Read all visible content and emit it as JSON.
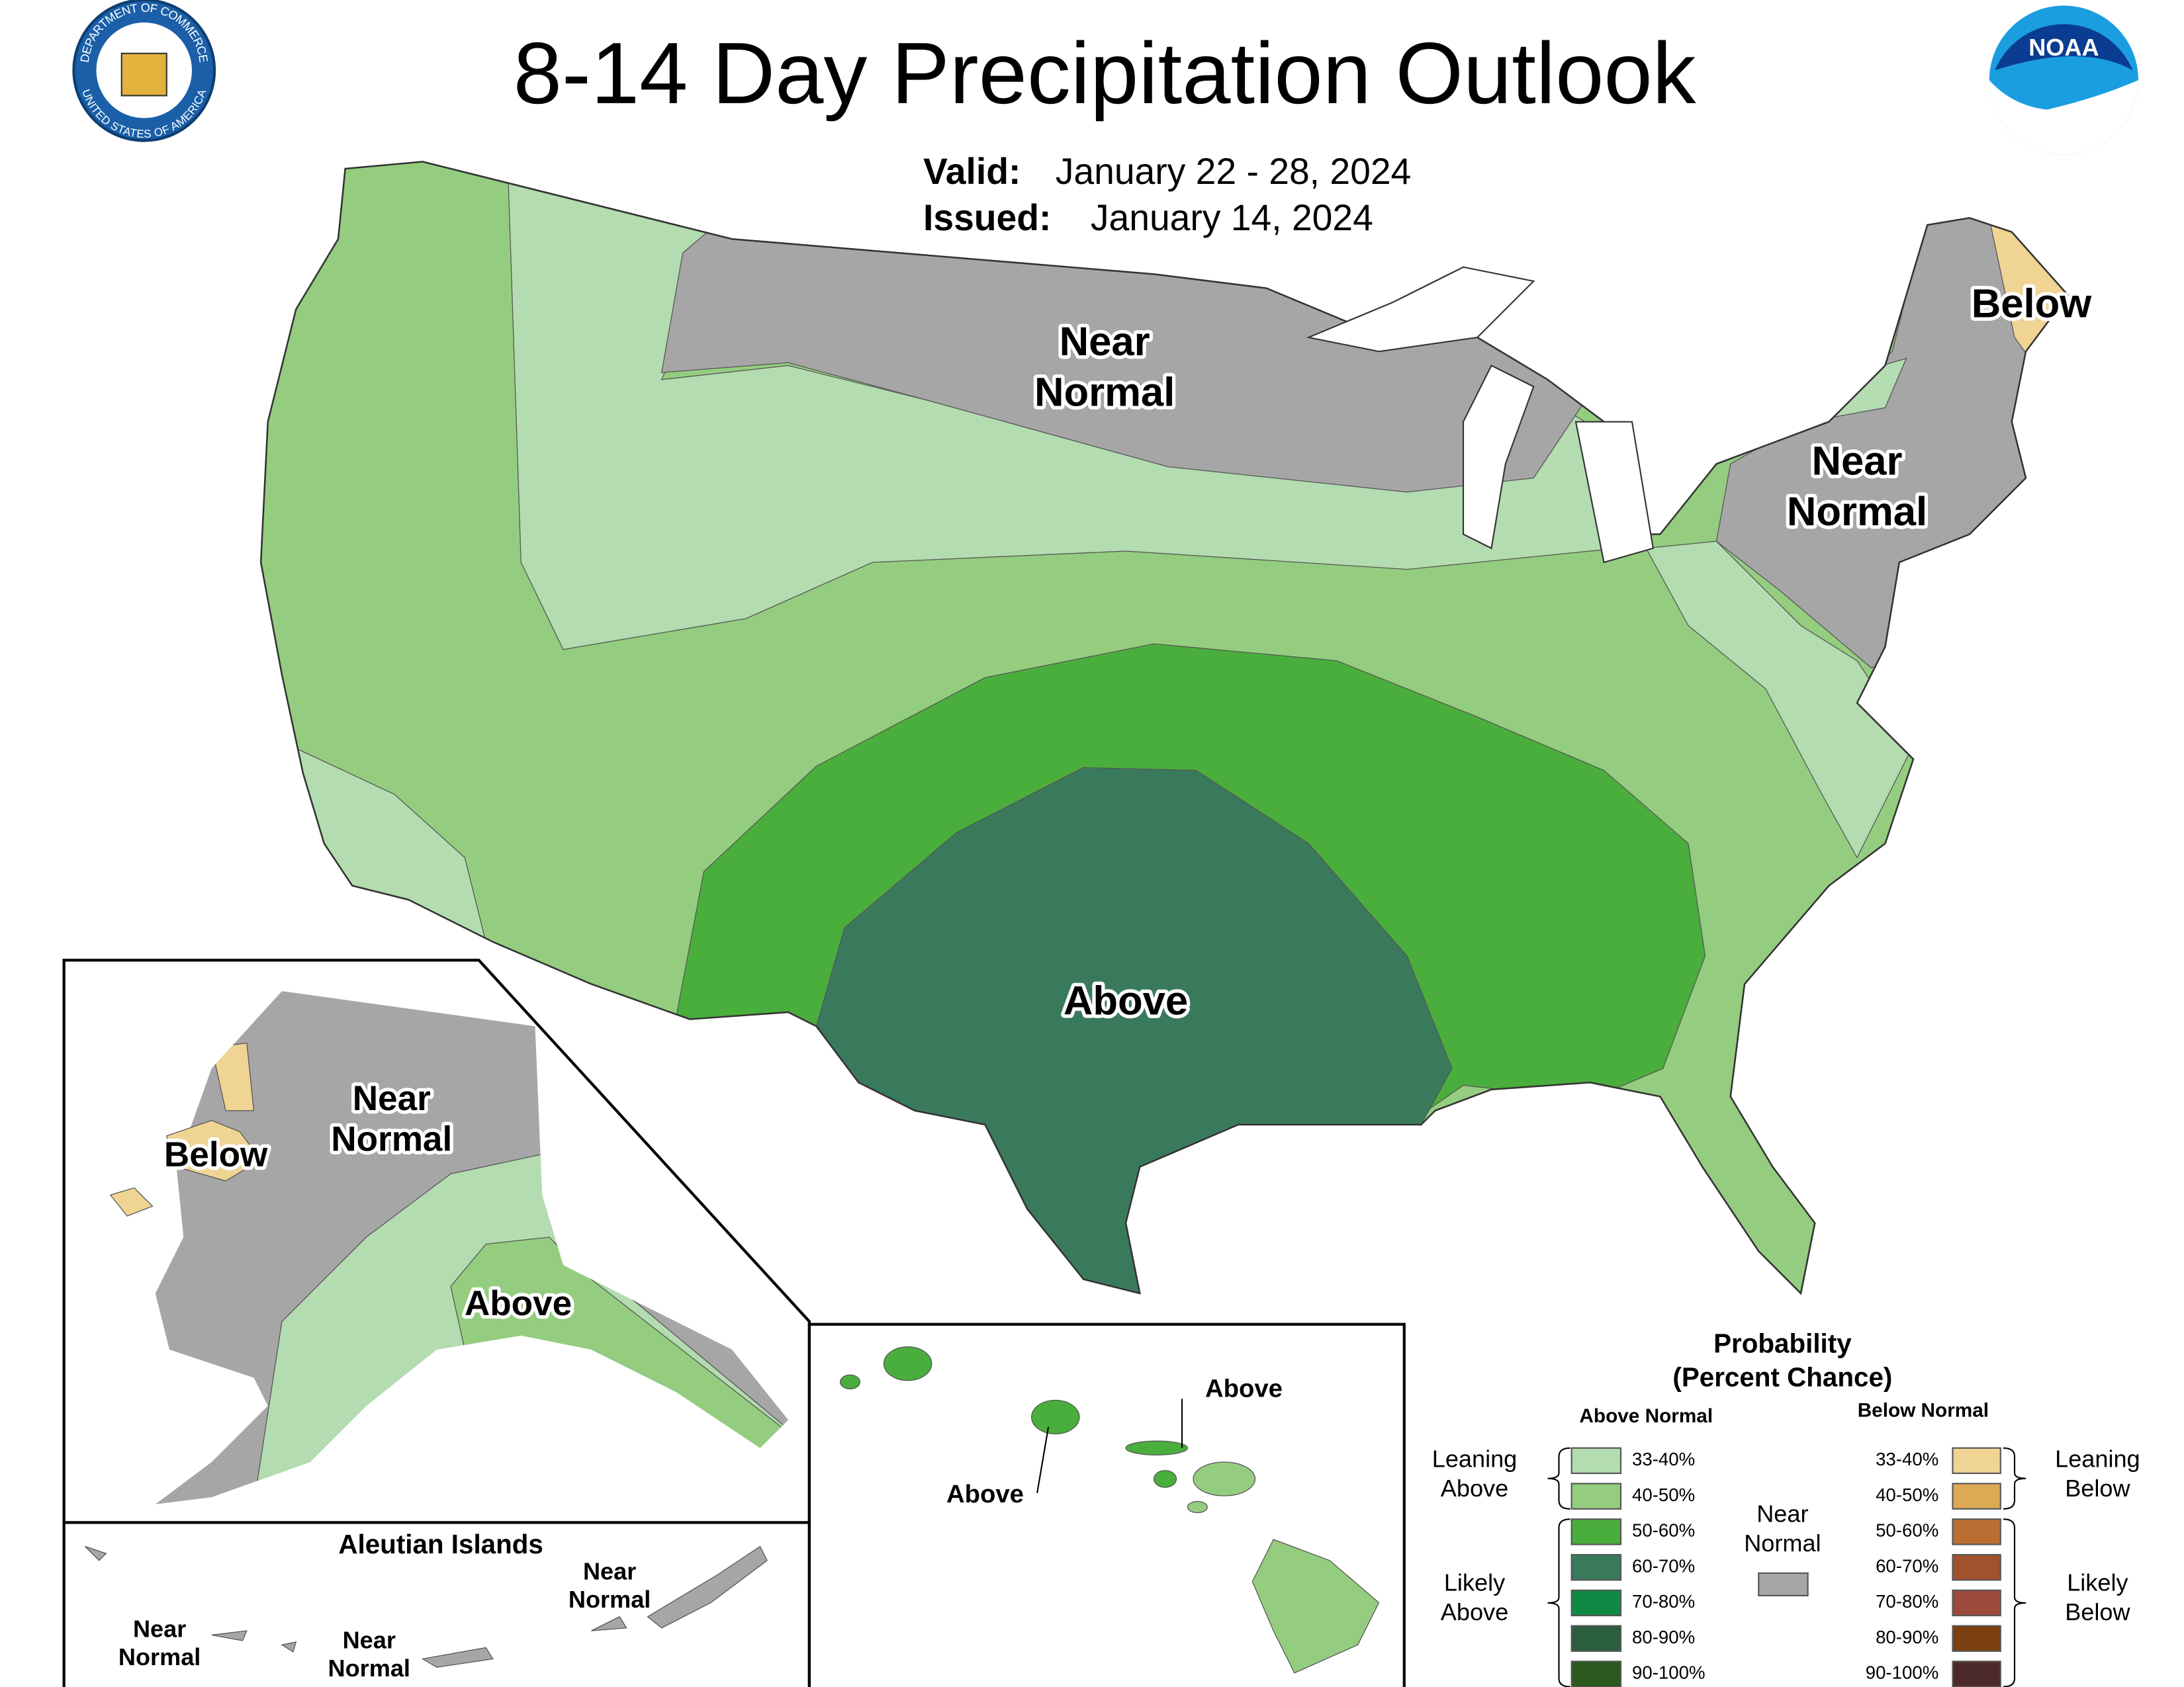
{
  "header": {
    "title": "8-14 Day Precipitation Outlook",
    "valid_label": "Valid:",
    "valid_dates": "January 22 - 28, 2024",
    "issued_label": "Issued:",
    "issued_date": "January 14, 2024"
  },
  "logos": {
    "commerce_top": "DEPARTMENT OF COMMERCE",
    "commerce_bottom": "UNITED STATES OF AMERICA",
    "noaa": "NOAA"
  },
  "conus_labels": [
    {
      "lines": [
        "Near",
        "Normal"
      ]
    },
    {
      "lines": [
        "Below"
      ]
    },
    {
      "lines": [
        "Near",
        "Normal"
      ]
    },
    {
      "lines": [
        "Above"
      ]
    }
  ],
  "alaska_labels": [
    {
      "lines": [
        "Near",
        "Normal"
      ]
    },
    {
      "lines": [
        "Below"
      ]
    },
    {
      "lines": [
        "Above"
      ]
    }
  ],
  "aleutian": {
    "title": "Aleutian Islands",
    "labels": [
      {
        "lines": [
          "Near",
          "Normal"
        ]
      },
      {
        "lines": [
          "Near",
          "Normal"
        ]
      },
      {
        "lines": [
          "Near",
          "Normal"
        ]
      }
    ]
  },
  "hawaii_labels": [
    {
      "lines": [
        "Above"
      ]
    },
    {
      "lines": [
        "Above"
      ]
    }
  ],
  "legend": {
    "title_lines": [
      "Probability",
      "(Percent Chance)"
    ],
    "above": {
      "header": "Above Normal",
      "entries": [
        {
          "range": "33-40%",
          "color": "#b3dcb0"
        },
        {
          "range": "40-50%",
          "color": "#94cd7f"
        },
        {
          "range": "50-60%",
          "color": "#4aae3c"
        },
        {
          "range": "60-70%",
          "color": "#3a7a5c"
        },
        {
          "range": "70-80%",
          "color": "#0f8a45"
        },
        {
          "range": "80-90%",
          "color": "#2b5e3d"
        },
        {
          "range": "90-100%",
          "color": "#2a5a1e"
        }
      ],
      "leaning": [
        "Leaning",
        "Above"
      ],
      "likely": [
        "Likely",
        "Above"
      ]
    },
    "below": {
      "header": "Below Normal",
      "entries": [
        {
          "range": "33-40%",
          "color": "#f0d494"
        },
        {
          "range": "40-50%",
          "color": "#dcaa52"
        },
        {
          "range": "50-60%",
          "color": "#bb6e33"
        },
        {
          "range": "60-70%",
          "color": "#a0522d"
        },
        {
          "range": "70-80%",
          "color": "#9c4a3a"
        },
        {
          "range": "80-90%",
          "color": "#7a4010"
        },
        {
          "range": "90-100%",
          "color": "#4d2a2a"
        }
      ],
      "leaning": [
        "Leaning",
        "Below"
      ],
      "likely": [
        "Likely",
        "Below"
      ]
    },
    "near": {
      "lines": [
        "Near",
        "Normal"
      ],
      "color": "#a6a6a6"
    }
  }
}
